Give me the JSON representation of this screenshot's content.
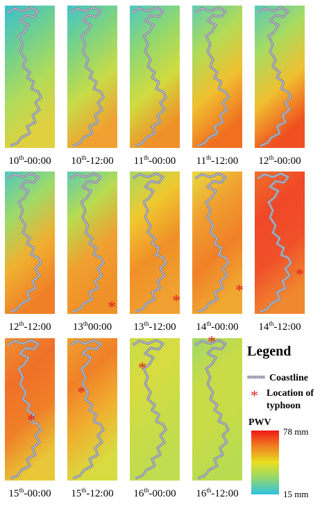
{
  "panels": [
    {
      "day": "10",
      "suffix": "th",
      "time": "-00:00"
    },
    {
      "day": "10",
      "suffix": "th",
      "time": "-12:00"
    },
    {
      "day": "11",
      "suffix": "th",
      "time": "-00:00"
    },
    {
      "day": "11",
      "suffix": "th",
      "time": "-12:00"
    },
    {
      "day": "12",
      "suffix": "th",
      "time": "-00:00"
    },
    {
      "day": "12",
      "suffix": "th",
      "time": "-12:00"
    },
    {
      "day": "13",
      "suffix": "th",
      "time": "00:00"
    },
    {
      "day": "13",
      "suffix": "th",
      "time": "-12:00"
    },
    {
      "day": "14",
      "suffix": "th",
      "time": "-00:00"
    },
    {
      "day": "14",
      "suffix": "th",
      "time": "-12:00"
    },
    {
      "day": "15",
      "suffix": "th",
      "time": "-00:00"
    },
    {
      "day": "15",
      "suffix": "th",
      "time": "-12:00"
    },
    {
      "day": "16",
      "suffix": "th",
      "time": "-00:00"
    },
    {
      "day": "16",
      "suffix": "th",
      "time": "-12:00"
    }
  ],
  "legend": {
    "title": "Legend",
    "coastline": "Coastline",
    "typhoon_line1": "Location of",
    "typhoon_line2": "typhoon",
    "colorbar_title": "PWV",
    "max_label": "78 mm",
    "min_label": "15 mm"
  }
}
